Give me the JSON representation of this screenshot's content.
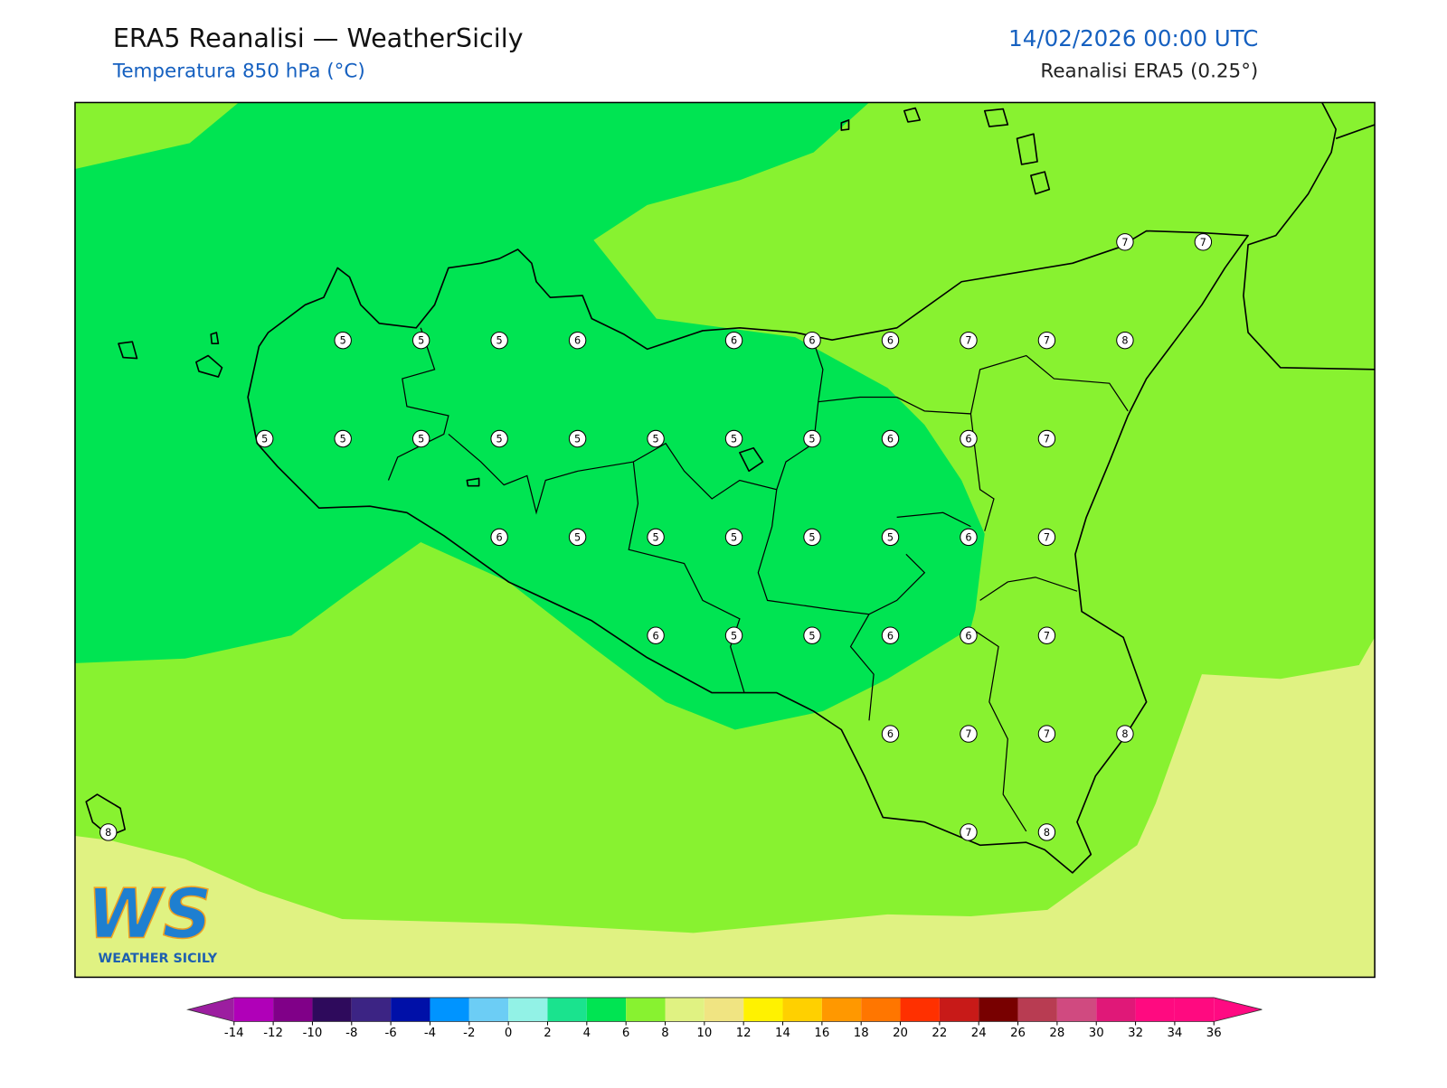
{
  "header": {
    "title": "ERA5 Reanalisi — WeatherSicily",
    "subtitle": "Temperatura 850 hPa (°C)",
    "datetime": "14/02/2026 00:00 UTC",
    "source": "Reanalisi ERA5 (0.25°)"
  },
  "logo": {
    "text": "WS",
    "caption": "WEATHER SICILY"
  },
  "stations": {
    "rows": [
      [
        null,
        null,
        null,
        null,
        null,
        null,
        null,
        null,
        null,
        null,
        null,
        null,
        null,
        7,
        7
      ],
      [
        null,
        null,
        null,
        5,
        5,
        5,
        6,
        null,
        6,
        6,
        6,
        7,
        7,
        8,
        null
      ],
      [
        null,
        null,
        5,
        5,
        5,
        5,
        5,
        5,
        5,
        5,
        6,
        6,
        7,
        null,
        null
      ],
      [
        null,
        null,
        null,
        null,
        null,
        6,
        5,
        5,
        5,
        5,
        5,
        6,
        7,
        null,
        null
      ],
      [
        null,
        null,
        null,
        null,
        null,
        null,
        null,
        6,
        5,
        5,
        6,
        6,
        7,
        null,
        null
      ],
      [
        null,
        null,
        null,
        null,
        null,
        null,
        null,
        null,
        null,
        null,
        6,
        7,
        7,
        8,
        null
      ],
      [
        8,
        null,
        null,
        null,
        null,
        null,
        null,
        null,
        null,
        null,
        null,
        7,
        8,
        null,
        null
      ]
    ]
  },
  "colorbar": {
    "ticks": [
      -14,
      -12,
      -10,
      -8,
      -6,
      -4,
      -2,
      0,
      2,
      4,
      6,
      8,
      10,
      12,
      14,
      16,
      18,
      20,
      22,
      24,
      26,
      28,
      30,
      32,
      34,
      36
    ],
    "colors": [
      "#b000b8",
      "#800088",
      "#2e0a5c",
      "#3c2484",
      "#0010a8",
      "#0094ff",
      "#6ccdf5",
      "#92f2e6",
      "#1ae38e",
      "#00e452",
      "#88f230",
      "#e0f282",
      "#f0e482",
      "#fff200",
      "#ffd000",
      "#ff9800",
      "#ff7600",
      "#ff3000",
      "#c81a18",
      "#780000",
      "#b83c52",
      "#d04a80",
      "#e01878",
      "#ff0a80",
      "#ff0a80"
    ],
    "under_color": "#9c1ea0",
    "over_color": "#ff0a82"
  }
}
